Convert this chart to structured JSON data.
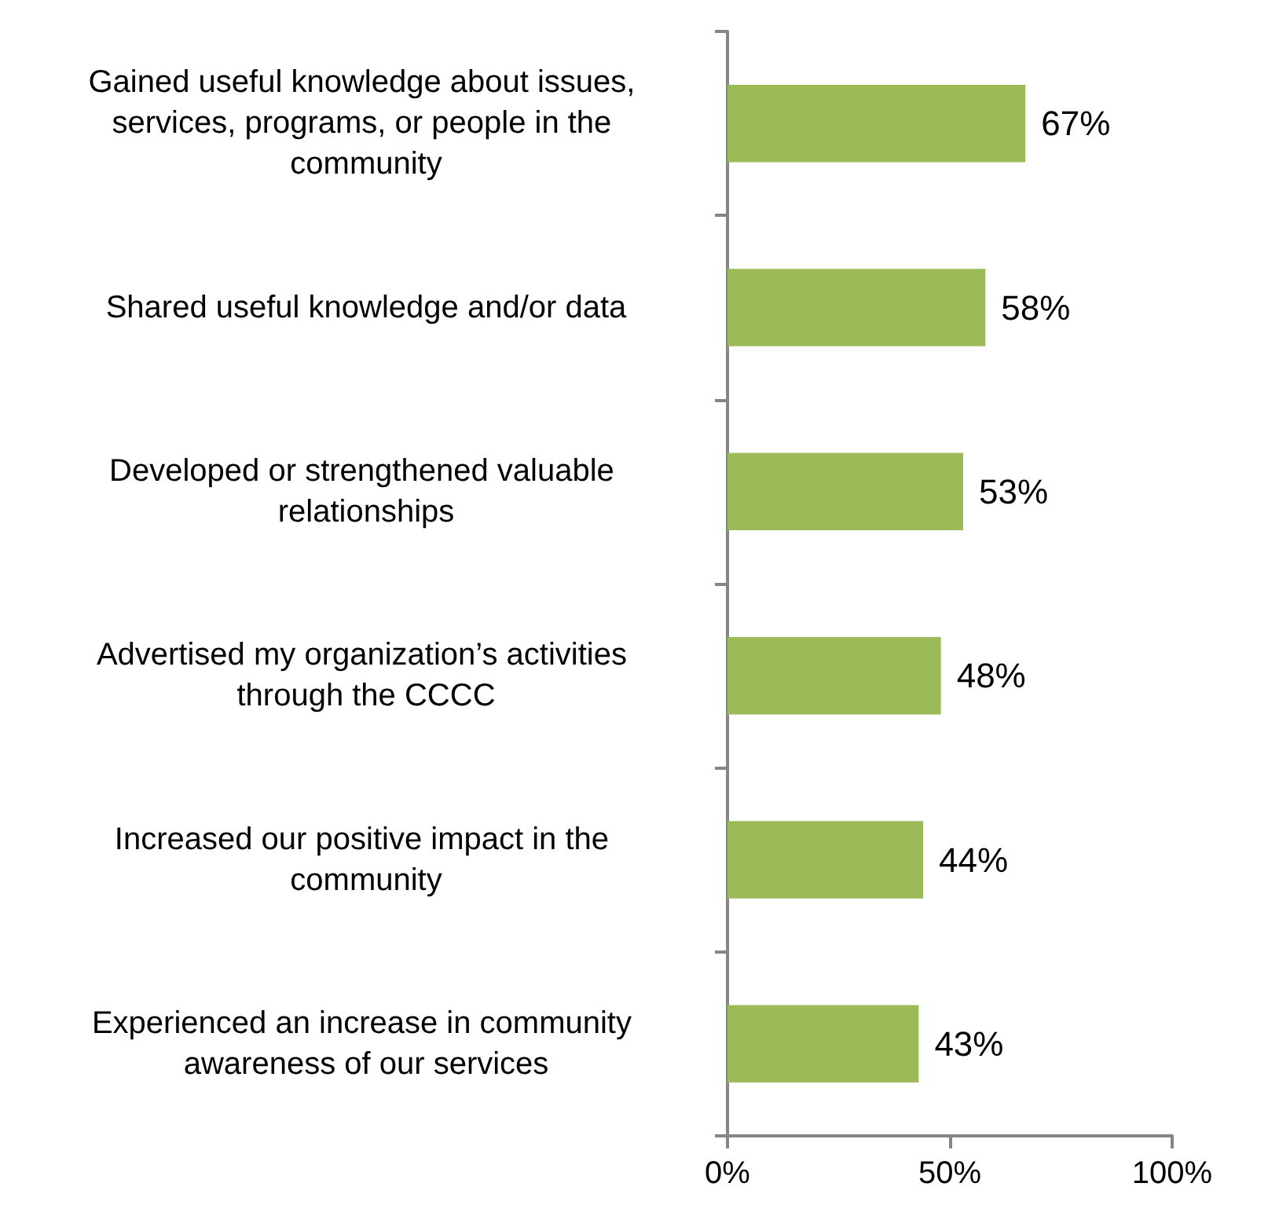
{
  "chart_data": {
    "type": "bar",
    "orientation": "horizontal",
    "categories": [
      "Gained useful knowledge about issues, services, programs, or people in the community",
      "Shared useful knowledge and/or data",
      "Developed or strengthened valuable relationships",
      "Advertised my organization’s activities through the CCCC",
      "Increased our positive impact in the community",
      "Experienced an increase in community awareness of our services"
    ],
    "values": [
      67,
      58,
      53,
      48,
      44,
      43
    ],
    "value_labels": [
      "67%",
      "58%",
      "53%",
      "48%",
      "44%",
      "43%"
    ],
    "color": "#9bbb59",
    "xlim": [
      0,
      100
    ],
    "xticks": [
      {
        "value": 0,
        "label": "0%"
      },
      {
        "value": 50,
        "label": "50%"
      },
      {
        "value": 100,
        "label": "100%"
      }
    ]
  }
}
